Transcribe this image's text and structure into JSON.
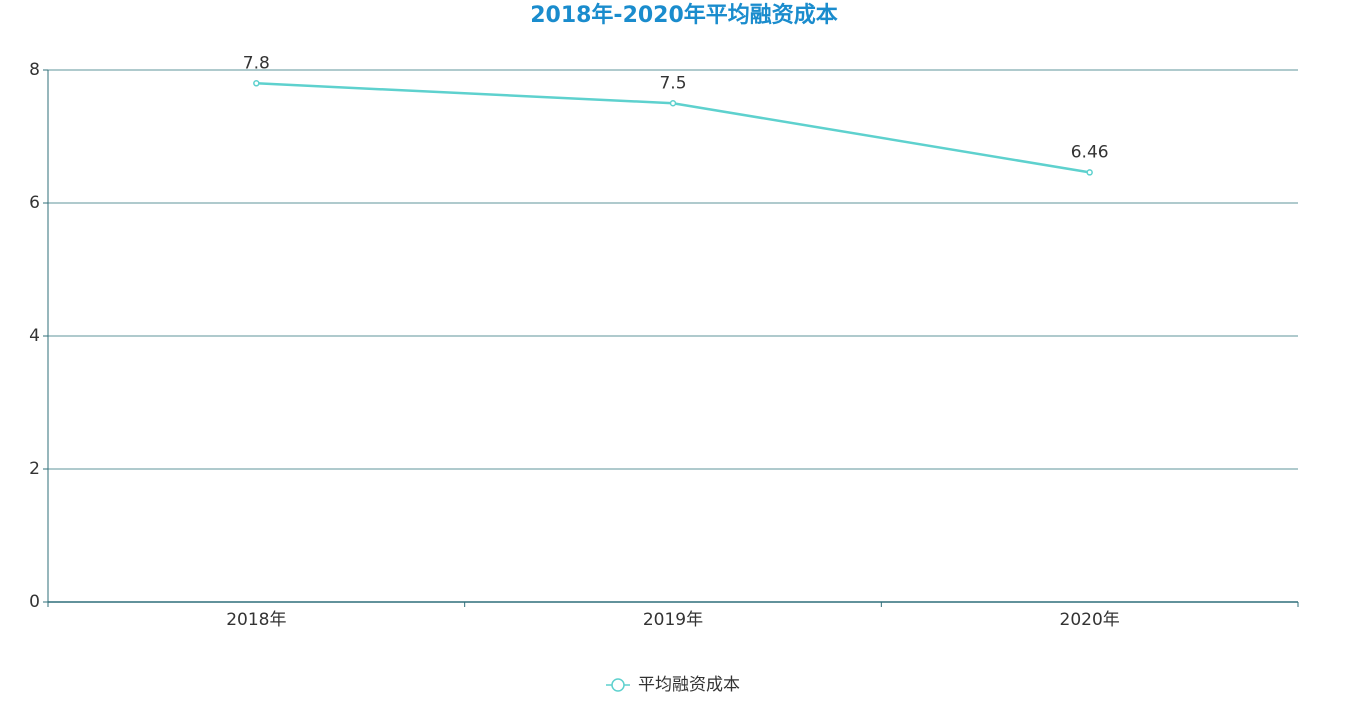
{
  "chart_data": {
    "type": "line",
    "title": "2018年-2020年平均融资成本",
    "categories": [
      "2018年",
      "2019年",
      "2020年"
    ],
    "series": [
      {
        "name": "平均融资成本",
        "color": "#5ed1ce",
        "values": [
          7.8,
          7.5,
          6.46
        ]
      }
    ],
    "ylim": [
      0,
      8
    ],
    "yticks": [
      0,
      2,
      4,
      6,
      8
    ],
    "grid": true,
    "legend": "bottom"
  }
}
